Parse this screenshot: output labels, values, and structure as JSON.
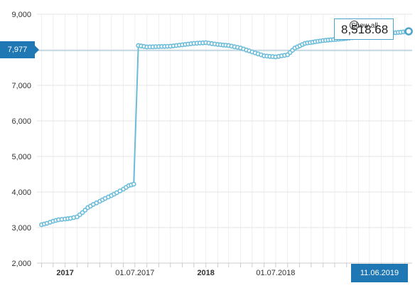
{
  "chart_data": {
    "type": "line",
    "y_ticks": [
      "2,000",
      "3,000",
      "4,000",
      "5,000",
      "6,000",
      "7,000",
      "8,000",
      "9,000"
    ],
    "y_tick_values": [
      2000,
      3000,
      4000,
      5000,
      6000,
      7000,
      8000,
      9000
    ],
    "x_ticks": [
      {
        "label": "2017",
        "date": "2017-01-01",
        "bold": true
      },
      {
        "label": "01.07.2017",
        "date": "2017-07-01",
        "bold": false
      },
      {
        "label": "2018",
        "date": "2018-01-01",
        "bold": true
      },
      {
        "label": "01.07.2018",
        "date": "2018-07-01",
        "bold": false
      }
    ],
    "ylim": [
      2000,
      9000
    ],
    "xlim": [
      "2016-10-20",
      "2019-06-20"
    ],
    "grid": true,
    "line_color": "#6bbcd9",
    "points": [
      [
        "2016-11-01",
        3080
      ],
      [
        "2016-11-15",
        3120
      ],
      [
        "2016-12-01",
        3180
      ],
      [
        "2016-12-15",
        3220
      ],
      [
        "2017-01-01",
        3240
      ],
      [
        "2017-01-15",
        3260
      ],
      [
        "2017-02-01",
        3300
      ],
      [
        "2017-02-15",
        3420
      ],
      [
        "2017-03-01",
        3560
      ],
      [
        "2017-03-15",
        3650
      ],
      [
        "2017-04-01",
        3740
      ],
      [
        "2017-04-15",
        3820
      ],
      [
        "2017-05-01",
        3900
      ],
      [
        "2017-05-15",
        3980
      ],
      [
        "2017-06-01",
        4080
      ],
      [
        "2017-06-15",
        4180
      ],
      [
        "2017-06-28",
        4220
      ],
      [
        "2017-07-10",
        8120
      ],
      [
        "2017-08-01",
        8080
      ],
      [
        "2017-09-01",
        8090
      ],
      [
        "2017-10-01",
        8100
      ],
      [
        "2017-11-01",
        8140
      ],
      [
        "2017-12-01",
        8180
      ],
      [
        "2018-01-01",
        8200
      ],
      [
        "2018-02-01",
        8150
      ],
      [
        "2018-03-01",
        8120
      ],
      [
        "2018-04-01",
        8050
      ],
      [
        "2018-05-01",
        7940
      ],
      [
        "2018-06-01",
        7830
      ],
      [
        "2018-07-01",
        7800
      ],
      [
        "2018-08-01",
        7860
      ],
      [
        "2018-08-20",
        8050
      ],
      [
        "2018-09-15",
        8180
      ],
      [
        "2018-11-01",
        8260
      ],
      [
        "2019-01-01",
        8320
      ],
      [
        "2019-03-01",
        8400
      ],
      [
        "2019-06-11",
        8518.68
      ]
    ]
  },
  "tooltip": {
    "value": "8,518.68"
  },
  "show_all": {
    "label": "Show all"
  },
  "crosshair": {
    "value_label": "7,977",
    "value": 7977
  },
  "selected_date": {
    "label": "11.06.2019"
  }
}
